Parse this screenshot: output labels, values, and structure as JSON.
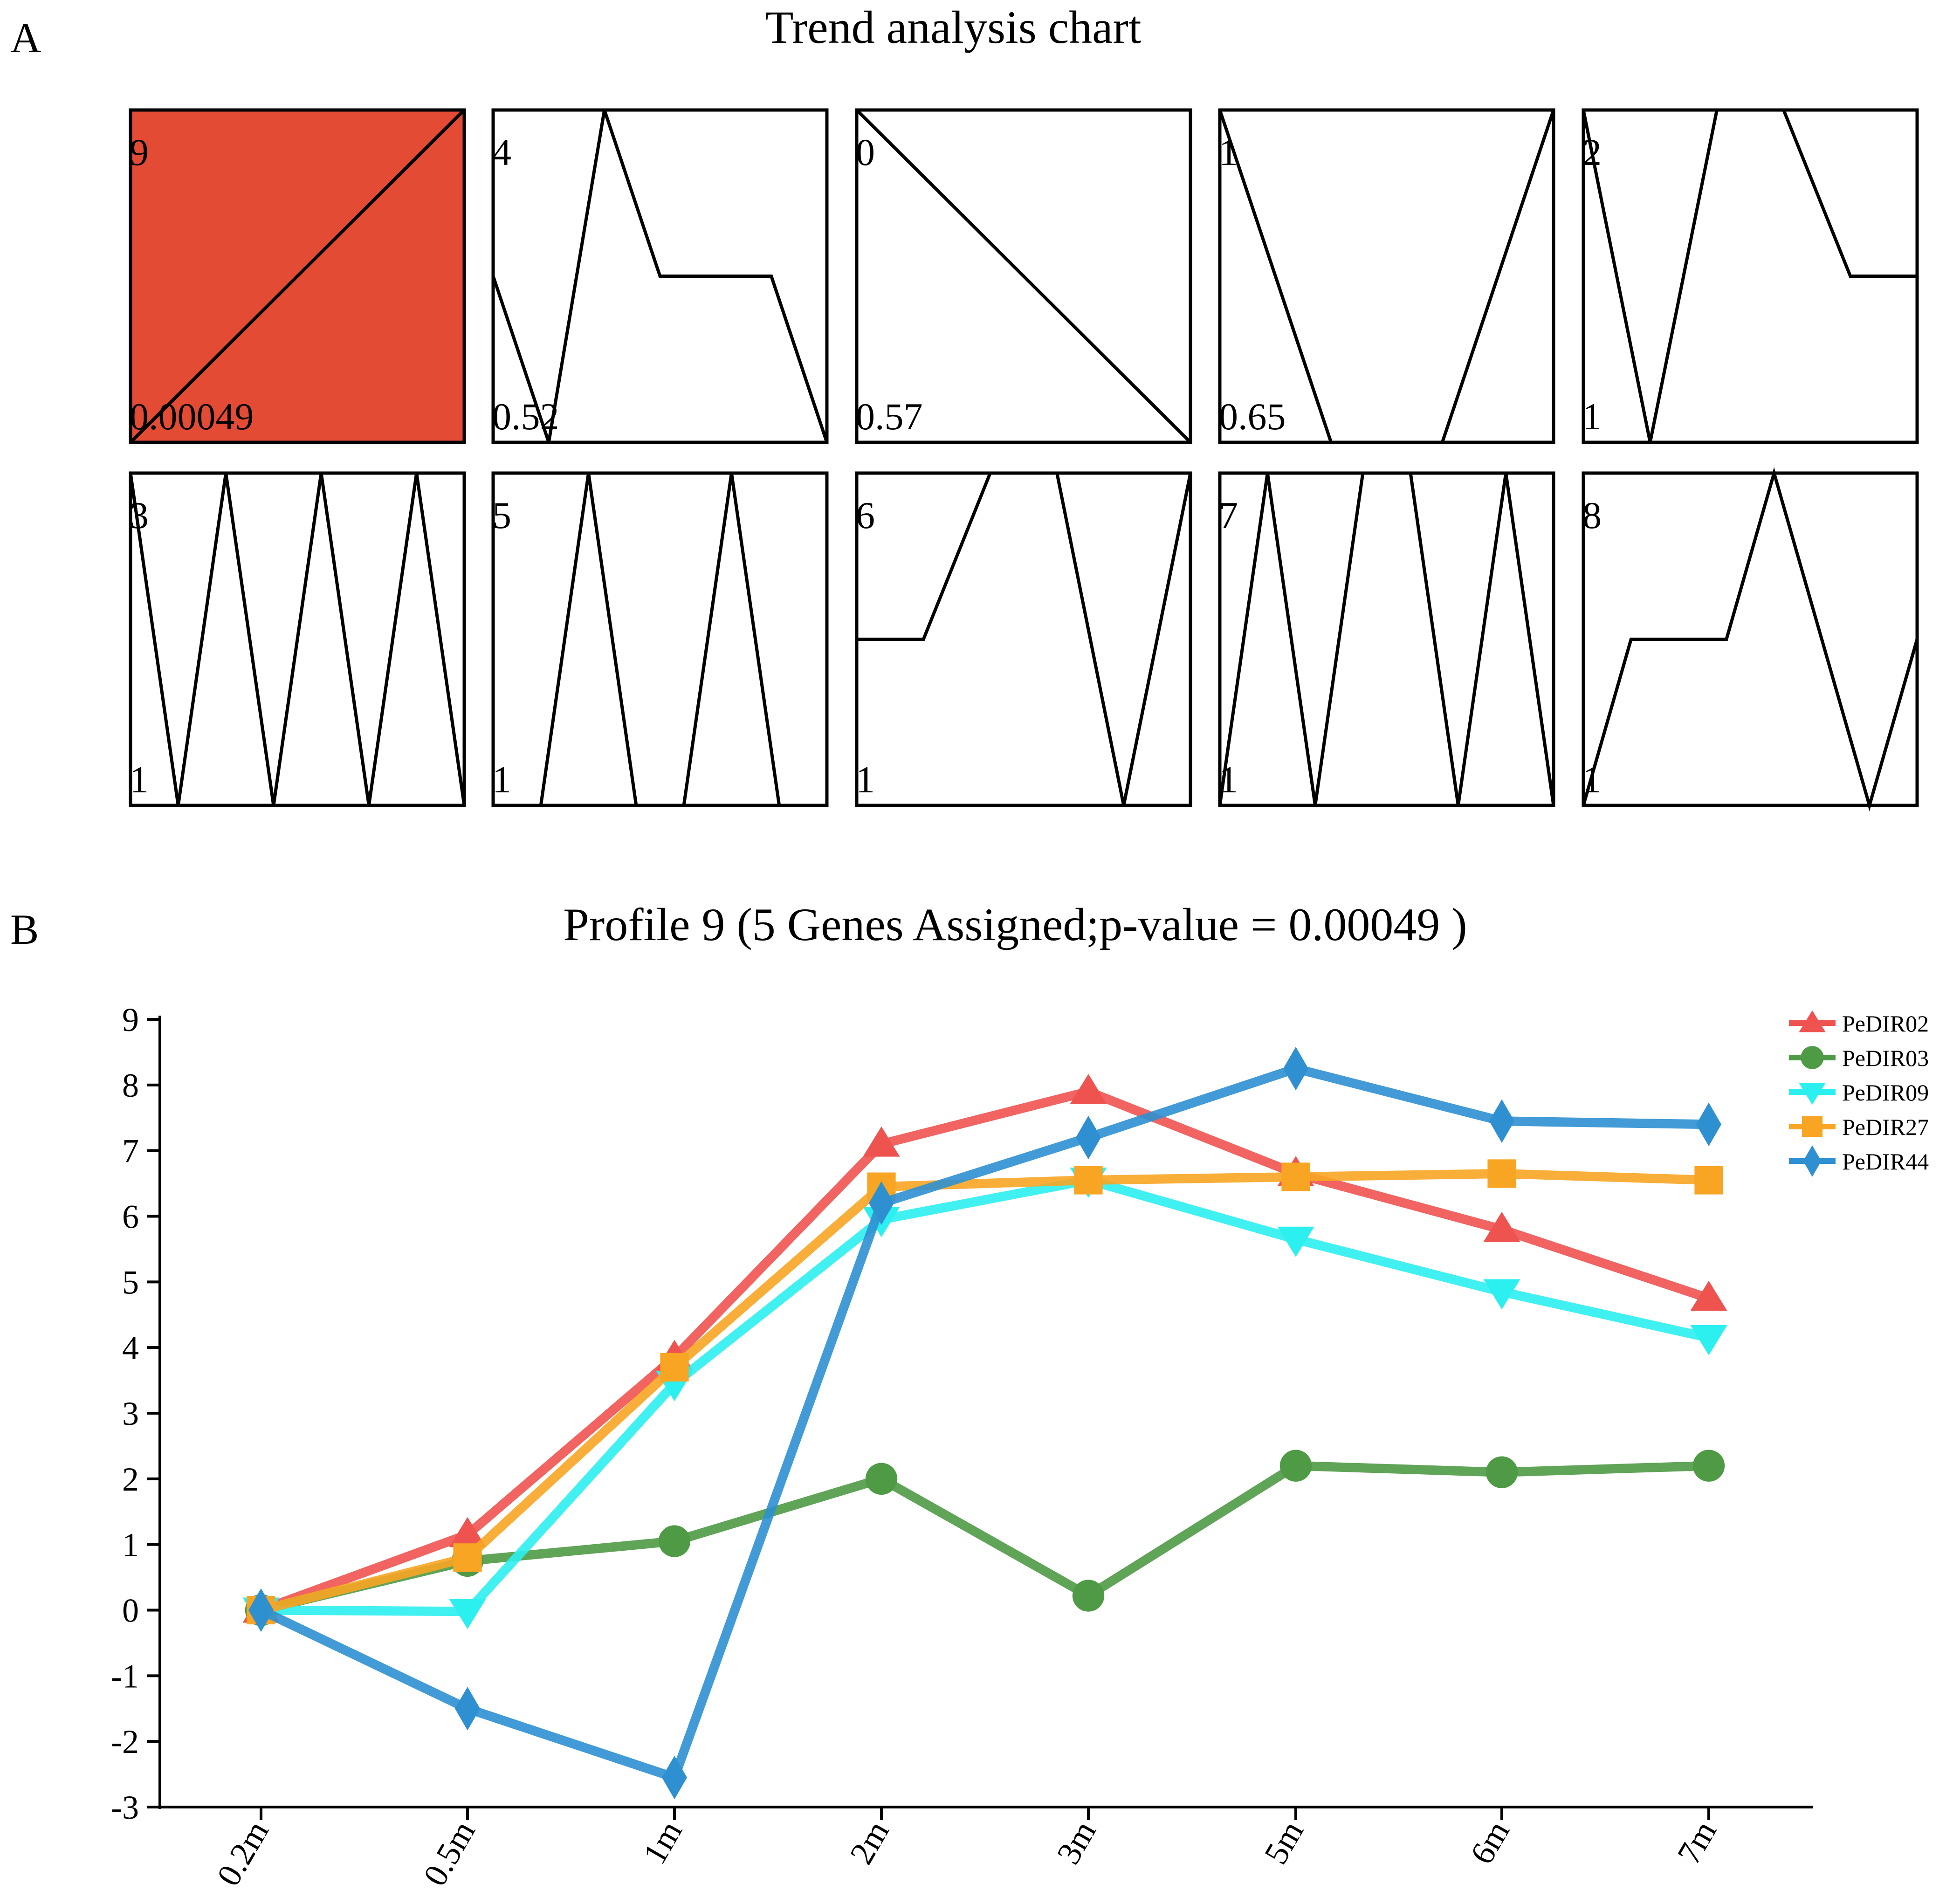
{
  "panel_a": {
    "label": "A",
    "title": "Trend analysis chart",
    "profiles": [
      {
        "id": "9",
        "value": "0.00049",
        "highlighted": true,
        "shape": [
          0,
          1
        ]
      },
      {
        "id": "4",
        "value": "0.52",
        "highlighted": false,
        "shape": [
          0,
          -1,
          1,
          0,
          0,
          0,
          -1
        ]
      },
      {
        "id": "0",
        "value": "0.57",
        "highlighted": false,
        "shape": [
          0,
          -1
        ]
      },
      {
        "id": "1",
        "value": "0.65",
        "highlighted": false,
        "shape": [
          0,
          -1,
          -1,
          0
        ]
      },
      {
        "id": "2",
        "value": "1",
        "highlighted": false,
        "shape": [
          0,
          -1,
          0,
          0,
          -0.5,
          -0.5
        ]
      },
      {
        "id": "3",
        "value": "1",
        "highlighted": false,
        "shape": [
          0,
          -1,
          0,
          -1,
          0,
          -1,
          0,
          -1
        ]
      },
      {
        "id": "5",
        "value": "1",
        "highlighted": false,
        "shape": [
          0,
          0,
          1,
          0,
          0,
          1,
          0,
          0
        ]
      },
      {
        "id": "6",
        "value": "1",
        "highlighted": false,
        "shape": [
          0,
          0,
          1,
          1,
          -1,
          1
        ]
      },
      {
        "id": "7",
        "value": "1",
        "highlighted": false,
        "shape": [
          0,
          1,
          0,
          1,
          1,
          0,
          1,
          0
        ]
      },
      {
        "id": "8",
        "value": "1",
        "highlighted": false,
        "shape": [
          0,
          0.5,
          0.5,
          0.5,
          1,
          0.5,
          0,
          0.5
        ]
      }
    ]
  },
  "panel_b": {
    "label": "B"
  },
  "colors": {
    "highlight_fill": "#E34B35",
    "PeDIR02": "#EF5350",
    "PeDIR03": "#4E9A45",
    "PeDIR09": "#2CF0F0",
    "PeDIR27": "#F7A523",
    "PeDIR44": "#2E90D1"
  },
  "chart_data": {
    "type": "line",
    "title": "Profile 9 (5 Genes Assigned;p-value = 0.00049 )",
    "xlabel": "",
    "ylabel": "",
    "categories": [
      "0.2m",
      "0.5m",
      "1m",
      "2m",
      "3m",
      "5m",
      "6m",
      "7m"
    ],
    "ylim": [
      -3,
      9
    ],
    "yticks": [
      "-3",
      "-2",
      "-1",
      "0",
      "1",
      "2",
      "3",
      "4",
      "5",
      "6",
      "7",
      "8",
      "9"
    ],
    "grid": false,
    "legend_position": "top-right",
    "series": [
      {
        "name": "PeDIR02",
        "marker": "triangle-up",
        "values": [
          0,
          1.15,
          3.85,
          7.1,
          7.9,
          6.65,
          5.8,
          4.75
        ]
      },
      {
        "name": "PeDIR03",
        "marker": "circle",
        "values": [
          0,
          0.75,
          1.05,
          2.0,
          0.22,
          2.2,
          2.1,
          2.2
        ]
      },
      {
        "name": "PeDIR09",
        "marker": "triangle-down",
        "values": [
          0,
          -0.02,
          3.45,
          5.95,
          6.55,
          5.65,
          4.85,
          4.15
        ]
      },
      {
        "name": "PeDIR27",
        "marker": "square",
        "values": [
          0,
          0.8,
          3.7,
          6.45,
          6.55,
          6.6,
          6.65,
          6.55
        ]
      },
      {
        "name": "PeDIR44",
        "marker": "diamond",
        "values": [
          0,
          -1.5,
          -2.55,
          6.2,
          7.2,
          8.25,
          7.45,
          7.4
        ]
      }
    ]
  }
}
